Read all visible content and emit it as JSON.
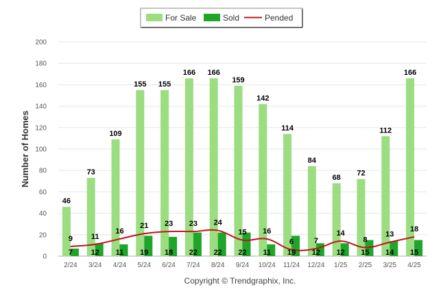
{
  "chart_data": {
    "type": "bar",
    "categories": [
      "2/24",
      "3/24",
      "4/24",
      "5/24",
      "6/24",
      "7/24",
      "8/24",
      "9/24",
      "10/24",
      "11/24",
      "12/24",
      "1/25",
      "2/25",
      "3/25",
      "4/25"
    ],
    "series": [
      {
        "name": "For Sale",
        "type": "bar",
        "color": "#9bdd80",
        "values": [
          46,
          73,
          109,
          155,
          155,
          166,
          166,
          159,
          142,
          114,
          84,
          68,
          72,
          112,
          166
        ]
      },
      {
        "name": "Sold",
        "type": "bar",
        "color": "#1ea52a",
        "values": [
          7,
          12,
          11,
          19,
          18,
          22,
          22,
          22,
          11,
          19,
          12,
          12,
          15,
          14,
          15
        ]
      },
      {
        "name": "Pended",
        "type": "line",
        "color": "#c0121a",
        "values": [
          9,
          11,
          16,
          21,
          23,
          23,
          24,
          15,
          16,
          6,
          7,
          14,
          8,
          13,
          18
        ]
      }
    ],
    "title": "",
    "xlabel": "",
    "ylabel": "Number of Homes",
    "ylim": [
      0,
      200
    ],
    "yticks": [
      0,
      20,
      40,
      60,
      80,
      100,
      120,
      140,
      160,
      180,
      200
    ],
    "grid": true,
    "legend_position": "top-center",
    "credit": "Copyright © Trendgraphix, Inc."
  }
}
